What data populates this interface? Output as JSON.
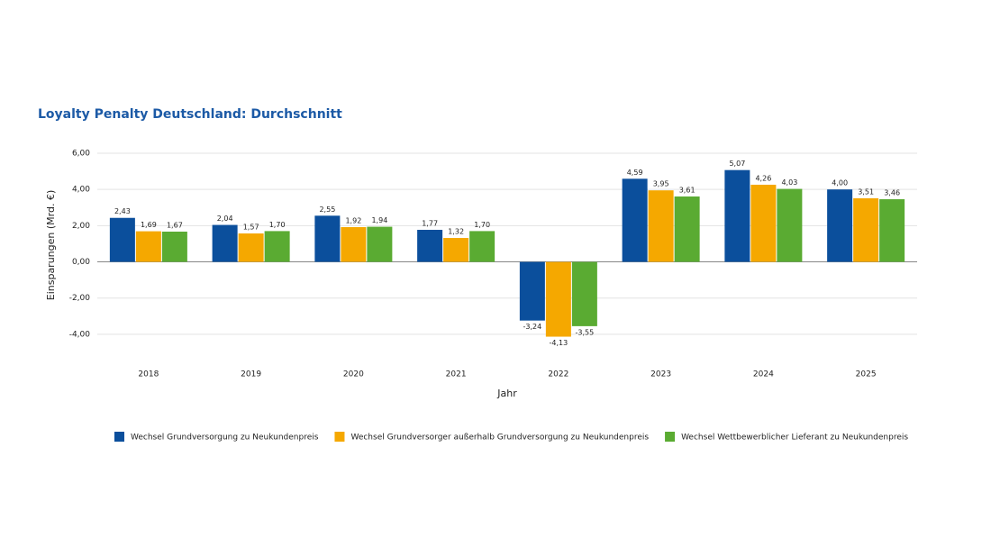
{
  "chart_data": {
    "type": "bar",
    "title": "Loyalty Penalty Deutschland: Durchschnitt",
    "x_label": "Jahr",
    "y_label": "Einsparungen (Mrd. €)",
    "categories": [
      "2018",
      "2019",
      "2020",
      "2021",
      "2022",
      "2023",
      "2024",
      "2025"
    ],
    "series": [
      {
        "name": "Wechsel Grundversorgung zu Neukundenpreis",
        "color": "#0b4f9c",
        "values": [
          2.43,
          2.04,
          2.55,
          1.77,
          -3.24,
          4.59,
          5.07,
          4.0
        ],
        "value_labels": [
          "2,43",
          "2,04",
          "2,55",
          "1,77",
          "-3,24",
          "4,59",
          "5,07",
          "4,00"
        ]
      },
      {
        "name": "Wechsel Grundversorger außerhalb Grundversorgung zu Neukundenpreis",
        "color": "#f5a800",
        "values": [
          1.69,
          1.57,
          1.92,
          1.32,
          -4.13,
          3.95,
          4.26,
          3.51
        ],
        "value_labels": [
          "1,69",
          "1,57",
          "1,92",
          "1,32",
          "-4,13",
          "3,95",
          "4,26",
          "3,51"
        ]
      },
      {
        "name": "Wechsel Wettbewerblicher Lieferant zu Neukundenpreis",
        "color": "#5aab32",
        "values": [
          1.67,
          1.7,
          1.94,
          1.7,
          -3.55,
          3.61,
          4.03,
          3.46
        ],
        "value_labels": [
          "1,67",
          "1,70",
          "1,94",
          "1,70",
          "-3,55",
          "3,61",
          "4,03",
          "3,46"
        ]
      }
    ],
    "ylim": [
      -4.7,
      6
    ],
    "yticks": [
      {
        "value": -4,
        "label": "-4,00"
      },
      {
        "value": -2,
        "label": "-2,00"
      },
      {
        "value": 0,
        "label": "0,00"
      },
      {
        "value": 2,
        "label": "2,00"
      },
      {
        "value": 4,
        "label": "4,00"
      },
      {
        "value": 6,
        "label": "6,00"
      }
    ],
    "grid": true,
    "legend": "bottom"
  }
}
